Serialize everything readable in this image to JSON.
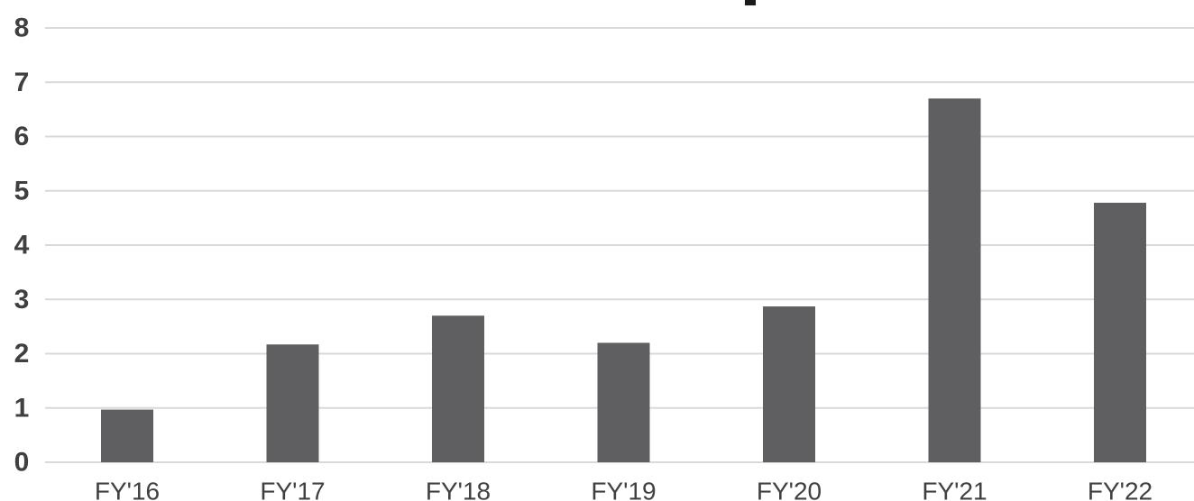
{
  "chart_data": {
    "type": "bar",
    "title": "",
    "xlabel": "",
    "ylabel": "",
    "categories": [
      "FY'16",
      "FY'17",
      "FY'18",
      "FY'19",
      "FY'20",
      "FY'21",
      "FY'22"
    ],
    "values": [
      0.97,
      2.17,
      2.7,
      2.2,
      2.87,
      6.7,
      4.78
    ],
    "ylim": [
      0,
      8
    ],
    "yticks": [
      "0",
      "1",
      "2",
      "3",
      "4",
      "5",
      "6",
      "7",
      "8"
    ],
    "grid": true,
    "legend": "none",
    "colors": {
      "bar": "#5f5f61",
      "grid": "#d9d9d9",
      "text": "#404040"
    }
  }
}
